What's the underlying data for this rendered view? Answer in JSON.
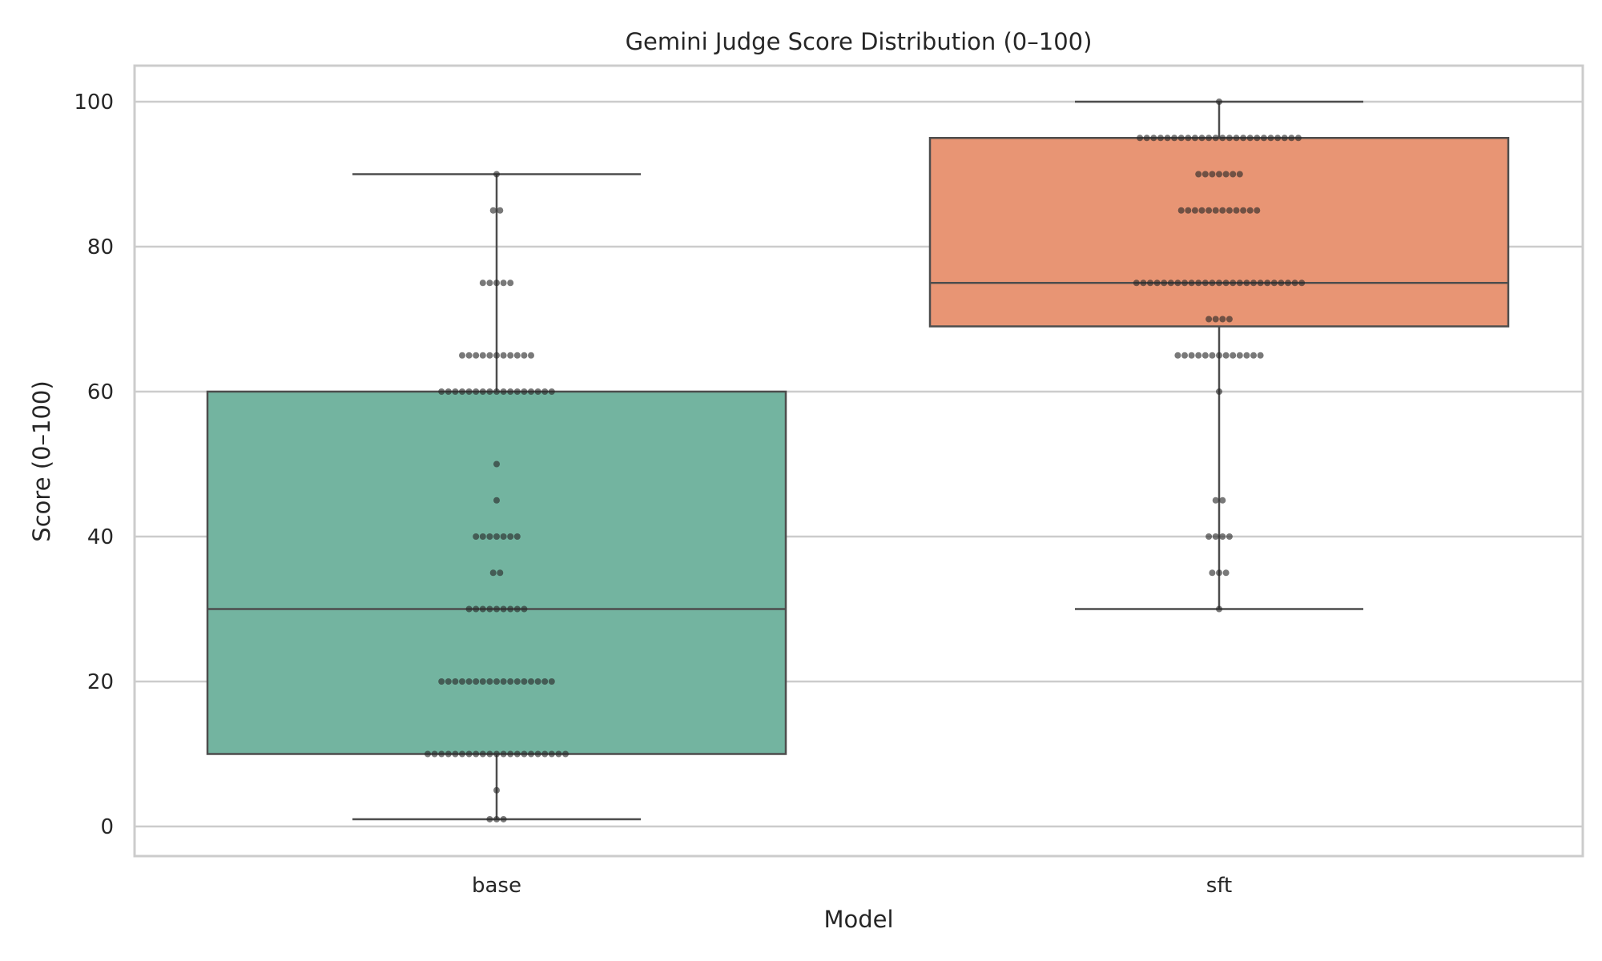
{
  "chart_data": {
    "type": "box",
    "title": "Gemini Judge Score Distribution (0–100)",
    "xlabel": "Model",
    "ylabel": "Score (0–100)",
    "categories": [
      "base",
      "sft"
    ],
    "ylim": [
      -4,
      105
    ],
    "yticks": [
      0,
      20,
      40,
      60,
      80,
      100
    ],
    "grid": "horizontal",
    "colors": {
      "base": "#73b4a0",
      "sft": "#e89574"
    },
    "boxes": [
      {
        "category": "base",
        "whisker_low": 1,
        "q1": 10,
        "median": 30,
        "q3": 60,
        "whisker_high": 90
      },
      {
        "category": "sft",
        "whisker_low": 30,
        "q1": 69,
        "median": 75,
        "q3": 95,
        "whisker_high": 100
      }
    ],
    "points": [
      {
        "category": "base",
        "values": [
          {
            "score": 1,
            "count": 3
          },
          {
            "score": 5,
            "count": 1
          },
          {
            "score": 10,
            "count": 21
          },
          {
            "score": 20,
            "count": 17
          },
          {
            "score": 30,
            "count": 9
          },
          {
            "score": 35,
            "count": 2
          },
          {
            "score": 40,
            "count": 7
          },
          {
            "score": 45,
            "count": 1
          },
          {
            "score": 50,
            "count": 1
          },
          {
            "score": 60,
            "count": 17
          },
          {
            "score": 65,
            "count": 11
          },
          {
            "score": 75,
            "count": 5
          },
          {
            "score": 85,
            "count": 2
          },
          {
            "score": 90,
            "count": 1
          }
        ]
      },
      {
        "category": "sft",
        "values": [
          {
            "score": 30,
            "count": 1
          },
          {
            "score": 35,
            "count": 3
          },
          {
            "score": 40,
            "count": 4
          },
          {
            "score": 45,
            "count": 2
          },
          {
            "score": 60,
            "count": 1
          },
          {
            "score": 65,
            "count": 13
          },
          {
            "score": 70,
            "count": 4
          },
          {
            "score": 75,
            "count": 25
          },
          {
            "score": 85,
            "count": 12
          },
          {
            "score": 90,
            "count": 7
          },
          {
            "score": 95,
            "count": 24
          },
          {
            "score": 100,
            "count": 1
          }
        ]
      }
    ]
  }
}
